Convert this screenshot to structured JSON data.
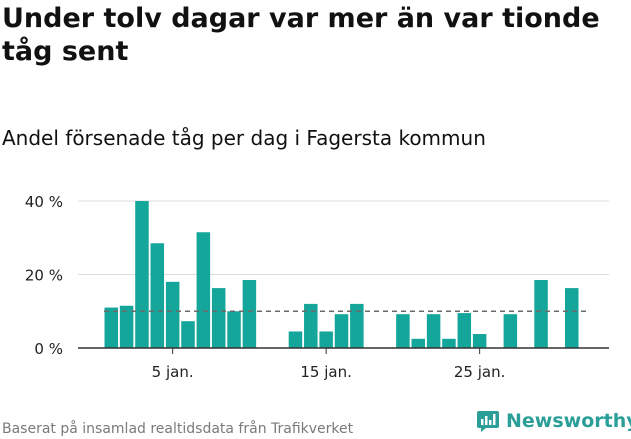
{
  "title": "Under tolv dagar var mer än var tionde tåg sent",
  "subtitle": "Andel försenade tåg per dag i Fagersta kommun",
  "footer": "Baserat på insamlad realtidsdata från Trafikverket",
  "brand": {
    "name": "Newsworthy",
    "icon": "newsworthy-logo-icon",
    "color": "#2a9e97"
  },
  "chart_data": {
    "type": "bar",
    "x_unit": "day of January",
    "x": [
      1,
      2,
      3,
      4,
      5,
      6,
      7,
      8,
      9,
      10,
      11,
      12,
      13,
      14,
      15,
      16,
      17,
      18,
      19,
      20,
      21,
      22,
      23,
      24,
      25,
      26,
      27,
      28,
      29,
      30,
      31
    ],
    "values": [
      11,
      11.5,
      40,
      28.5,
      18,
      7.3,
      31.5,
      16.3,
      10,
      18.5,
      null,
      null,
      4.5,
      12,
      4.5,
      9.2,
      12,
      null,
      null,
      9.2,
      2.5,
      9.2,
      2.5,
      9.5,
      3.8,
      null,
      9.2,
      null,
      18.5,
      null,
      16.3
    ],
    "reference_line": 10,
    "ylim": [
      0,
      42
    ],
    "yticks": [
      0,
      20,
      40
    ],
    "ytick_labels": [
      "0 %",
      "20 %",
      "40 %"
    ],
    "xticks": [
      5,
      15,
      25
    ],
    "xtick_labels": [
      "5 jan.",
      "15 jan.",
      "25 jan."
    ],
    "bar_color": "#14a69a",
    "grid": true
  }
}
